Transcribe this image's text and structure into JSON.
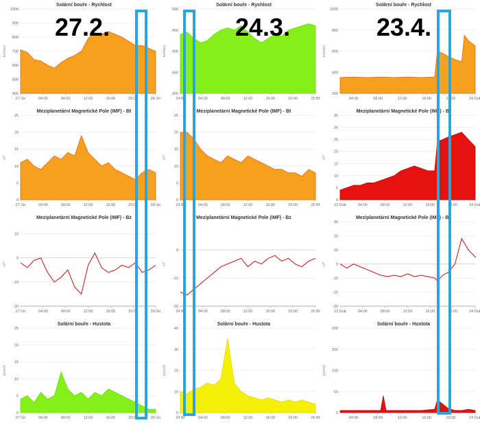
{
  "big_dates": [
    "27.2.",
    "24.3.",
    "23.4."
  ],
  "colors": {
    "highlight": "#2aa6dc"
  },
  "chart_data": [
    {
      "id": "c00",
      "type": "area",
      "title": "Solární bouře - Rychlost",
      "ylabel": "km/sec",
      "ylim": [
        400,
        1000
      ],
      "yticks": [
        400,
        500,
        600,
        700,
        800,
        900,
        1000
      ],
      "xticks": [
        "27 Ún",
        "04:00",
        "08:00",
        "12:00",
        "16:00",
        "20:00",
        "28 Ún"
      ],
      "credit": "",
      "series": [
        {
          "fill": "#f5a01e",
          "top": "#e86a16",
          "x": [
            0,
            0.05,
            0.1,
            0.15,
            0.2,
            0.25,
            0.3,
            0.35,
            0.4,
            0.45,
            0.5,
            0.55,
            0.6,
            0.65,
            0.7,
            0.75,
            0.8,
            0.85,
            0.9,
            0.95,
            1.0
          ],
          "values": [
            710,
            690,
            640,
            630,
            600,
            580,
            620,
            650,
            670,
            700,
            790,
            830,
            820,
            840,
            820,
            800,
            770,
            740,
            740,
            720,
            700
          ]
        }
      ]
    },
    {
      "id": "c01",
      "type": "area",
      "title": "Solární bouře - Rychlost",
      "ylabel": "km/sec",
      "ylim": [
        300,
        500
      ],
      "yticks": [
        300,
        350,
        400,
        450,
        500
      ],
      "xticks": [
        "24 Bř",
        "04:00",
        "08:00",
        "12:00",
        "16:00",
        "20:00",
        "25 Bř"
      ],
      "credit": "",
      "series": [
        {
          "fill": "#86ef1a",
          "top": "#6cd812",
          "x": [
            0,
            0.05,
            0.1,
            0.15,
            0.2,
            0.25,
            0.3,
            0.35,
            0.4,
            0.45,
            0.5,
            0.55,
            0.6,
            0.65,
            0.7,
            0.75,
            0.8,
            0.85,
            0.9,
            0.95,
            1.0
          ],
          "values": [
            440,
            445,
            430,
            420,
            425,
            440,
            450,
            455,
            450,
            460,
            445,
            430,
            420,
            430,
            440,
            435,
            450,
            455,
            460,
            465,
            460
          ]
        }
      ]
    },
    {
      "id": "c02",
      "type": "area",
      "title": "Solární bouře - Rychlost",
      "ylabel": "km/sec",
      "ylim": [
        200,
        1000
      ],
      "yticks": [
        200,
        400,
        600,
        800,
        1000
      ],
      "xticks": [
        "04:00",
        "08:00",
        "12:00",
        "16:00",
        "20:00",
        "24 Dub"
      ],
      "credit": "",
      "series": [
        {
          "fill": "#f5a01e",
          "top": "#e86a16",
          "x": [
            0,
            0.1,
            0.2,
            0.3,
            0.4,
            0.5,
            0.6,
            0.7,
            0.72,
            0.76,
            0.8,
            0.85,
            0.9,
            0.92,
            0.95,
            1.0
          ],
          "values": [
            350,
            355,
            350,
            355,
            350,
            355,
            350,
            355,
            600,
            580,
            550,
            520,
            500,
            750,
            700,
            650
          ]
        }
      ]
    },
    {
      "id": "c10",
      "type": "area",
      "title": "Meziplanetární Magnetické Pole (IMF) - Bt",
      "ylabel": "nT",
      "ylim": [
        0,
        25
      ],
      "yticks": [
        0,
        5,
        10,
        15,
        20,
        25
      ],
      "xticks": [
        "27 Ún",
        "04:00",
        "08:00",
        "12:00",
        "16:00",
        "20:00",
        "28 Ún"
      ],
      "credit": "",
      "series": [
        {
          "fill": "#f5a01e",
          "top": "#e86a16",
          "x": [
            0,
            0.05,
            0.1,
            0.15,
            0.2,
            0.25,
            0.3,
            0.35,
            0.4,
            0.45,
            0.5,
            0.55,
            0.6,
            0.65,
            0.7,
            0.75,
            0.8,
            0.85,
            0.9,
            0.95,
            1.0
          ],
          "values": [
            11,
            12,
            10,
            9,
            11,
            13,
            12,
            14,
            13,
            19,
            14,
            12,
            10,
            11,
            9,
            8,
            7,
            6,
            8,
            9,
            8
          ]
        }
      ]
    },
    {
      "id": "c11",
      "type": "area",
      "title": "Meziplanetární Magnetické Pole (IMF) - Bt",
      "ylabel": "nT",
      "ylim": [
        0,
        25
      ],
      "yticks": [
        0,
        5,
        10,
        15,
        20,
        25
      ],
      "xticks": [
        "24 Bř",
        "04:00",
        "08:00",
        "12:00",
        "16:00",
        "20:00",
        "25 Bř"
      ],
      "credit": "",
      "series": [
        {
          "fill": "#f5a01e",
          "top": "#e86a16",
          "x": [
            0,
            0.05,
            0.1,
            0.15,
            0.2,
            0.25,
            0.3,
            0.35,
            0.4,
            0.45,
            0.5,
            0.55,
            0.6,
            0.65,
            0.7,
            0.75,
            0.8,
            0.85,
            0.9,
            0.95,
            1.0
          ],
          "values": [
            20,
            20,
            18,
            15,
            13,
            12,
            11,
            13,
            12,
            11,
            13,
            12,
            11,
            10,
            9,
            9,
            8,
            8,
            7,
            9,
            8
          ]
        }
      ]
    },
    {
      "id": "c12",
      "type": "area",
      "title": "Meziplanetární Magnetické Pole (IMF) - Bt",
      "ylabel": "nT",
      "ylim": [
        0,
        35
      ],
      "yticks": [
        0,
        5,
        10,
        15,
        20,
        25,
        30,
        35
      ],
      "xticks": [
        "23 Dub",
        "04:00",
        "08:00",
        "12:00",
        "16:00",
        "20:00",
        "24 Dub"
      ],
      "credit": "",
      "series": [
        {
          "fill": "#e6120f",
          "top": "#b80a08",
          "x": [
            0,
            0.05,
            0.1,
            0.15,
            0.2,
            0.25,
            0.3,
            0.35,
            0.4,
            0.45,
            0.5,
            0.55,
            0.6,
            0.65,
            0.7,
            0.72,
            0.76,
            0.8,
            0.85,
            0.9,
            0.95,
            1.0
          ],
          "values": [
            4,
            5,
            6,
            6,
            7,
            7,
            8,
            9,
            10,
            12,
            13,
            14,
            13,
            12,
            12,
            24,
            25,
            26,
            27,
            28,
            25,
            22
          ]
        }
      ]
    },
    {
      "id": "c20",
      "type": "line",
      "title": "Meziplanetární Magnetické Pole (IMF) - Bz",
      "ylabel": "nT",
      "ylim": [
        -20,
        15
      ],
      "yticks": [
        -20,
        -10,
        0,
        10
      ],
      "xticks": [
        "27 Ún",
        "04:00",
        "08:00",
        "12:00",
        "16:00",
        "20:00",
        "28 Ún"
      ],
      "credit": "",
      "series": [
        {
          "fill": "#cc2222",
          "x": [
            0,
            0.05,
            0.1,
            0.15,
            0.2,
            0.25,
            0.3,
            0.35,
            0.4,
            0.45,
            0.5,
            0.55,
            0.6,
            0.65,
            0.7,
            0.75,
            0.8,
            0.85,
            0.9,
            0.95,
            1.0
          ],
          "values": [
            -2,
            -4,
            -1,
            0,
            -6,
            -10,
            -8,
            -5,
            -12,
            -15,
            -3,
            2,
            -4,
            -6,
            -5,
            -3,
            -4,
            -2,
            -6,
            -5,
            -3
          ]
        }
      ]
    },
    {
      "id": "c21",
      "type": "line",
      "title": "Meziplanetární Magnetické Pole (IMF) - Bz",
      "ylabel": "nT",
      "ylim": [
        -20,
        10
      ],
      "yticks": [
        -20,
        -10,
        0
      ],
      "xticks": [
        "24 Bř",
        "04:00",
        "08:00",
        "12:00",
        "16:00",
        "20:00",
        "25 Bř"
      ],
      "credit": "",
      "series": [
        {
          "fill": "#cc2222",
          "x": [
            0,
            0.05,
            0.1,
            0.15,
            0.2,
            0.25,
            0.3,
            0.35,
            0.4,
            0.45,
            0.5,
            0.55,
            0.6,
            0.65,
            0.7,
            0.75,
            0.8,
            0.85,
            0.9,
            0.95,
            1.0
          ],
          "values": [
            -15,
            -16,
            -14,
            -12,
            -10,
            -8,
            -6,
            -5,
            -4,
            -3,
            -6,
            -4,
            -5,
            -3,
            -2,
            -4,
            -3,
            -5,
            -6,
            -4,
            -3
          ]
        }
      ]
    },
    {
      "id": "c22",
      "type": "line",
      "title": "Meziplanetární Magnetické Pole (IMF) - Bz",
      "ylabel": "nT",
      "ylim": [
        -30,
        30
      ],
      "yticks": [
        -30,
        -20,
        -10,
        0,
        10,
        20,
        30
      ],
      "xticks": [
        "23 Dub",
        "04:00",
        "08:00",
        "12:00",
        "16:00",
        "20:00",
        "24 Dub"
      ],
      "credit": "",
      "series": [
        {
          "fill": "#cc2222",
          "x": [
            0,
            0.05,
            0.1,
            0.15,
            0.2,
            0.25,
            0.3,
            0.35,
            0.4,
            0.45,
            0.5,
            0.55,
            0.6,
            0.65,
            0.7,
            0.72,
            0.76,
            0.8,
            0.85,
            0.9,
            0.95,
            1.0
          ],
          "values": [
            0,
            -3,
            0,
            -2,
            -4,
            -6,
            -8,
            -9,
            -8,
            -9,
            -7,
            -9,
            -8,
            -9,
            -10,
            -12,
            -8,
            -6,
            0,
            18,
            10,
            5
          ]
        }
      ]
    },
    {
      "id": "c30",
      "type": "area",
      "title": "Solární bouře - Hustota",
      "ylabel": "p/cm3",
      "ylim": [
        0,
        25
      ],
      "yticks": [
        0,
        5,
        10,
        15,
        20,
        25
      ],
      "xticks": [
        "27 Ún",
        "04:00",
        "08:00",
        "12:00",
        "16:00",
        "20:00",
        "28 Ún"
      ],
      "credit": "",
      "series": [
        {
          "fill": "#86ef1a",
          "top": "#6cd812",
          "x": [
            0,
            0.05,
            0.1,
            0.15,
            0.2,
            0.25,
            0.3,
            0.35,
            0.4,
            0.45,
            0.5,
            0.55,
            0.6,
            0.65,
            0.7,
            0.75,
            0.8,
            0.85,
            0.9,
            0.95,
            1.0
          ],
          "values": [
            4,
            5,
            3,
            6,
            4,
            5,
            12,
            7,
            5,
            6,
            4,
            6,
            5,
            7,
            6,
            5,
            4,
            3,
            2,
            1,
            1
          ]
        }
      ]
    },
    {
      "id": "c31",
      "type": "area",
      "title": "Solární bouře - Hustota",
      "ylabel": "p/cm3",
      "ylim": [
        0,
        40
      ],
      "yticks": [
        0,
        10,
        20,
        30,
        40
      ],
      "xticks": [
        "24 Bř",
        "04:00",
        "08:00",
        "12:00",
        "16:00",
        "20:00",
        "25 Bř"
      ],
      "credit": "",
      "series": [
        {
          "fill": "#f4f008",
          "top": "#e3d800",
          "x": [
            0,
            0.05,
            0.1,
            0.15,
            0.2,
            0.25,
            0.3,
            0.35,
            0.4,
            0.45,
            0.5,
            0.55,
            0.6,
            0.65,
            0.7,
            0.75,
            0.8,
            0.85,
            0.9,
            0.95,
            1.0
          ],
          "values": [
            10,
            9,
            11,
            12,
            14,
            13,
            16,
            35,
            14,
            10,
            8,
            7,
            6,
            7,
            6,
            5,
            6,
            5,
            6,
            5,
            4
          ]
        }
      ]
    },
    {
      "id": "c32",
      "type": "area",
      "title": "Solární bouře - Hustota",
      "ylabel": "p/cm3",
      "ylim": [
        0,
        200
      ],
      "yticks": [
        0,
        50,
        100,
        150,
        200
      ],
      "xticks": [
        "04:00",
        "08:00",
        "12:00",
        "16:00",
        "20:00",
        "24 Dub"
      ],
      "credit": "",
      "series": [
        {
          "fill": "#e6120f",
          "top": "#b80a08",
          "x": [
            0,
            0.1,
            0.2,
            0.3,
            0.32,
            0.34,
            0.4,
            0.5,
            0.6,
            0.7,
            0.72,
            0.76,
            0.8,
            0.85,
            0.9,
            0.95,
            1.0
          ],
          "values": [
            5,
            5,
            5,
            5,
            40,
            5,
            5,
            5,
            5,
            8,
            30,
            20,
            10,
            5,
            5,
            8,
            5
          ]
        }
      ]
    }
  ]
}
